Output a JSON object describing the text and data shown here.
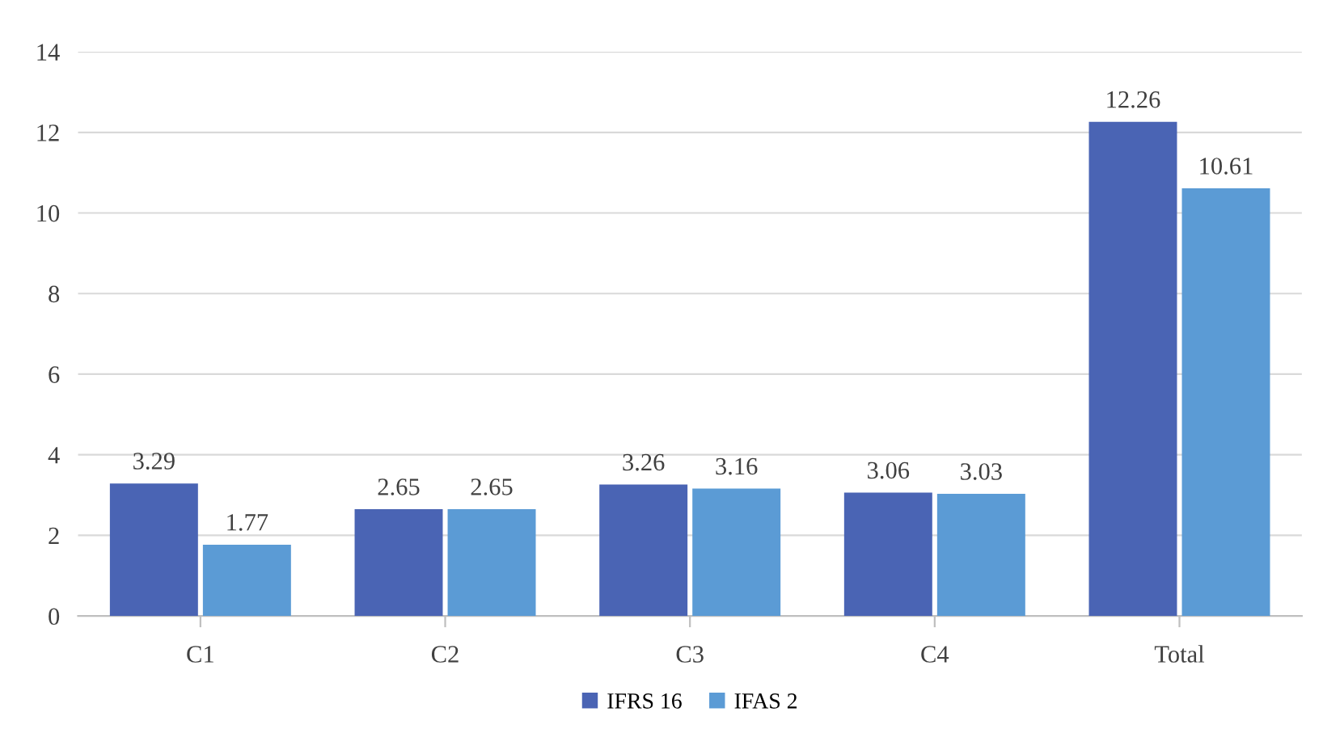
{
  "chart_data": {
    "type": "bar",
    "categories": [
      "C1",
      "C2",
      "C3",
      "C4",
      "Total"
    ],
    "series": [
      {
        "name": "IFRS 16",
        "color": "#4a64b4",
        "values": [
          3.29,
          2.65,
          3.26,
          3.06,
          12.26
        ]
      },
      {
        "name": "IFAS 2",
        "color": "#5b9bd5",
        "values": [
          1.77,
          2.65,
          3.16,
          3.03,
          10.61
        ]
      }
    ],
    "ylim": [
      0,
      14
    ],
    "yticks": [
      0,
      2,
      4,
      6,
      8,
      10,
      12,
      14
    ],
    "grid": "y",
    "legend": "bottom",
    "data_labels": true
  }
}
